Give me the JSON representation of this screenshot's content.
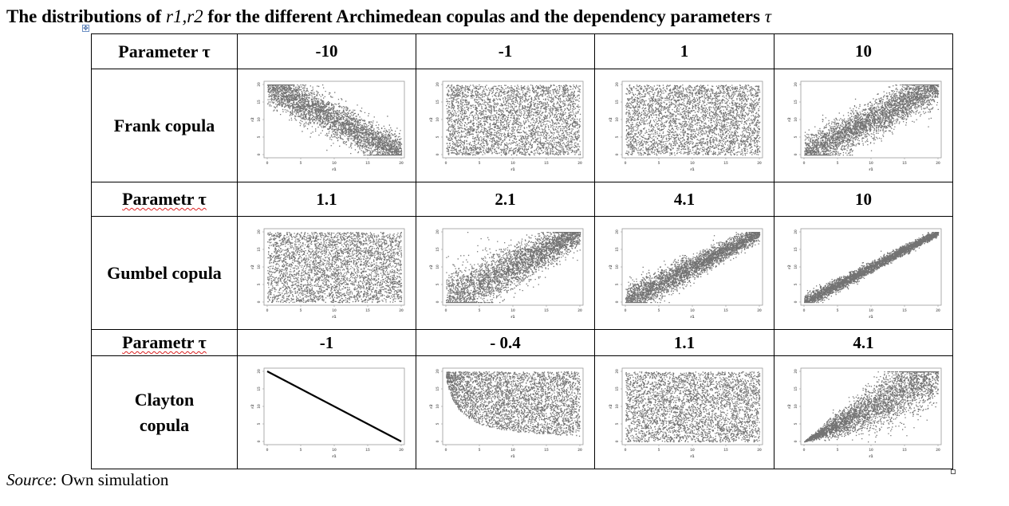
{
  "title": {
    "prefix": "The distributions of ",
    "vars": "r1,r2",
    "suffix": " for the different Archimedean copulas and the dependency parameters ",
    "symbol": "τ"
  },
  "source": {
    "label": "Source",
    "text": ": Own simulation"
  },
  "sections": [
    {
      "param_header": "Parameter τ",
      "param_underlined": false,
      "params": [
        "-10",
        "-1",
        "1",
        "10"
      ],
      "copula": "Frank copula"
    },
    {
      "param_header": "Parametr τ",
      "param_underlined": true,
      "params": [
        "1.1",
        "2.1",
        "4.1",
        "10"
      ],
      "copula": "Gumbel copula"
    },
    {
      "param_header": "Parametr τ",
      "param_underlined": true,
      "params": [
        "-1",
        "- 0.4",
        "1.1",
        "4.1"
      ],
      "copula": "Clayton copula"
    }
  ],
  "plot_axes": {
    "xlabel": "r1",
    "ylabel": "r2",
    "xticks": [
      "0",
      "5",
      "10",
      "15",
      "20"
    ],
    "yticks": [
      "0",
      "5",
      "10",
      "15",
      "20"
    ],
    "xlim": [
      0,
      20
    ],
    "ylim": [
      0,
      20
    ]
  },
  "plot_kinds": [
    [
      "negative-dependence",
      "uniform",
      "uniform",
      "positive-dependence"
    ],
    [
      "uniform",
      "upper-tail-weak",
      "upper-tail-medium",
      "upper-tail-strong"
    ],
    [
      "straight-line-decreasing",
      "negative-lower-boundary-curve",
      "uniform",
      "lower-tail-positive"
    ]
  ],
  "colors": {
    "points": "#000000",
    "grid_line": "#000000",
    "frame": "#9a9a9a",
    "error_underline": "#dd2222"
  }
}
